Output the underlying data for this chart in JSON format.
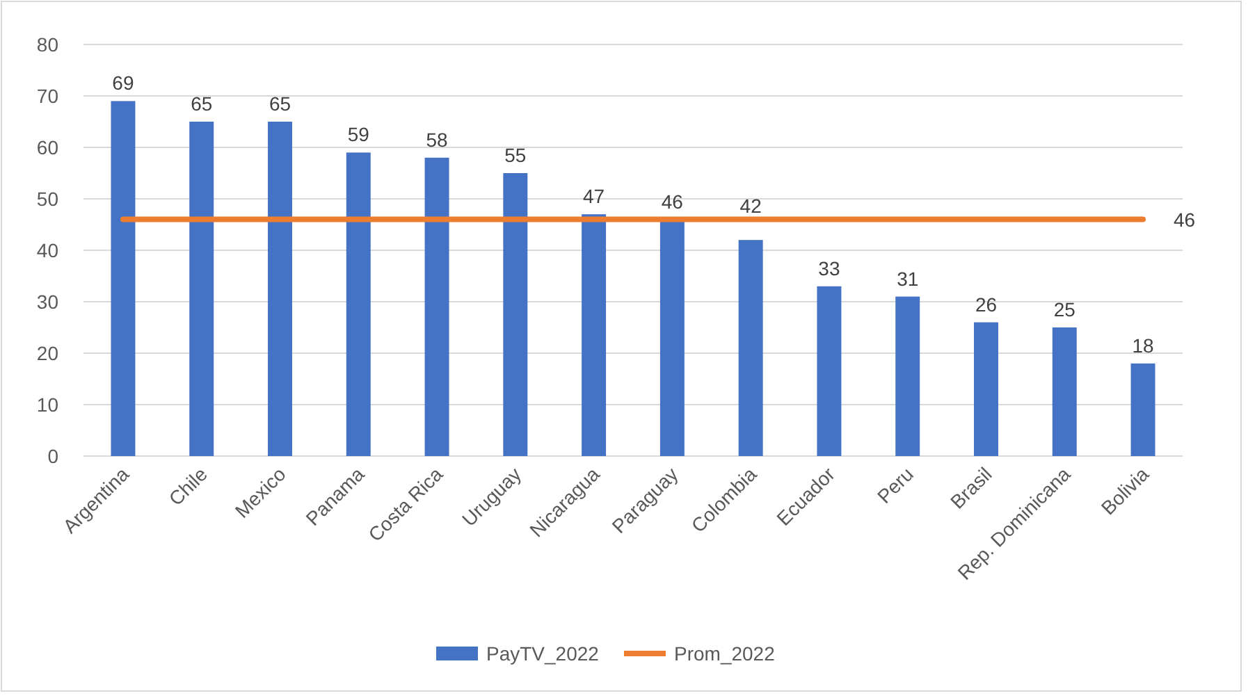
{
  "chart_data": {
    "type": "bar",
    "categories": [
      "Argentina",
      "Chile",
      "Mexico",
      "Panama",
      "Costa Rica",
      "Uruguay",
      "Nicaragua",
      "Paraguay",
      "Colombia",
      "Ecuador",
      "Peru",
      "Brasil",
      "Rep. Dominicana",
      "Bolivia"
    ],
    "series": [
      {
        "name": "PayTV_2022",
        "color": "#4472c4",
        "values": [
          69,
          65,
          65,
          59,
          58,
          55,
          47,
          46,
          42,
          33,
          31,
          26,
          25,
          18
        ],
        "data_labels": true
      },
      {
        "name": "Prom_2022",
        "type": "line",
        "color": "#ed7d31",
        "values": [
          46,
          46,
          46,
          46,
          46,
          46,
          46,
          46,
          46,
          46,
          46,
          46,
          46,
          46
        ],
        "value_labels": [
          null,
          null,
          null,
          null,
          null,
          null,
          null,
          null,
          null,
          null,
          null,
          null,
          null,
          "46"
        ]
      }
    ],
    "ylim": [
      0,
      80
    ],
    "yticks": [
      0,
      10,
      20,
      30,
      40,
      50,
      60,
      70,
      80
    ],
    "grid": "y",
    "legend": "bottom"
  }
}
